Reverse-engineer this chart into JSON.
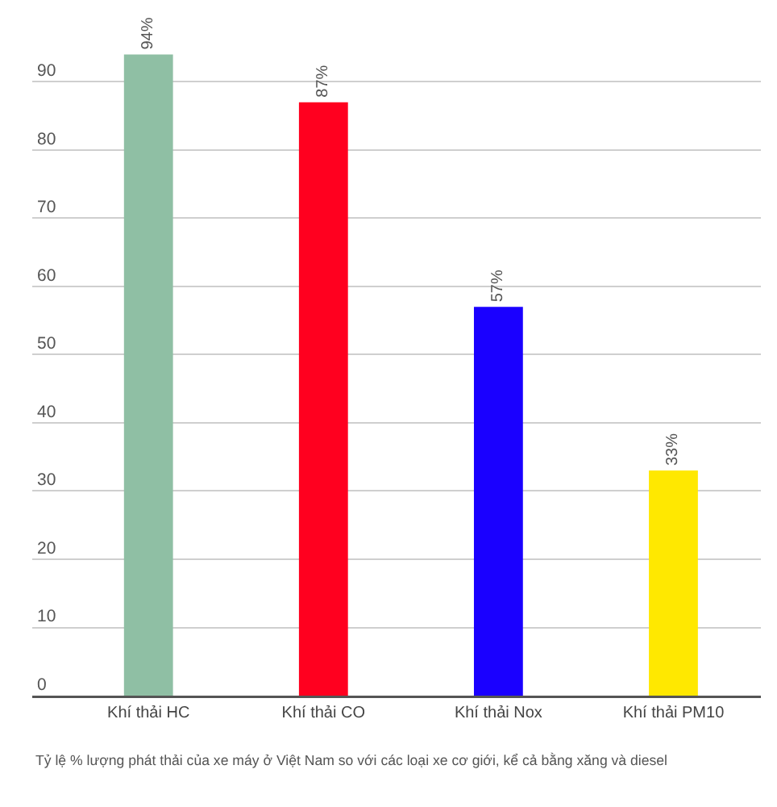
{
  "chart_data": {
    "type": "bar",
    "categories": [
      "Khí thải HC",
      "Khí thải CO",
      "Khí thải Nox",
      "Khí thải PM10"
    ],
    "values": [
      94,
      87,
      57,
      33
    ],
    "colors": [
      "#8fbfa4",
      "#ff001f",
      "#1a00ff",
      "#ffe800"
    ],
    "value_labels": [
      "94%",
      "87%",
      "57%",
      "33%"
    ],
    "ylim": [
      0,
      102
    ],
    "yticks": [
      0,
      10,
      20,
      30,
      40,
      50,
      60,
      70,
      80,
      90
    ],
    "grid": "y",
    "annotations": [
      "Tỷ lệ % lượng phát thải của xe máy ở Việt Nam so với các loại xe cơ giới, kể cả bằng xăng và diesel"
    ]
  }
}
